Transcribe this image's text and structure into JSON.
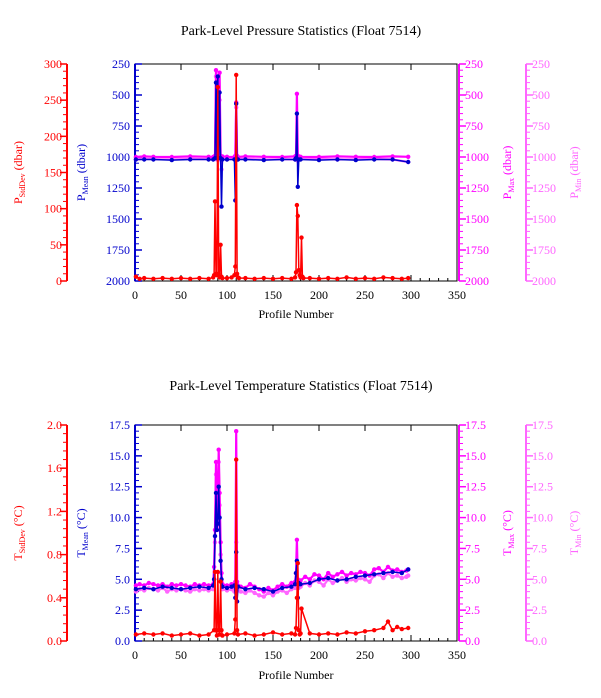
{
  "chart_data": [
    {
      "type": "line",
      "title": "Park-Level Pressure Statistics (Float 7514)",
      "xlabel": "Profile Number",
      "xlim": [
        0,
        350
      ],
      "x_ticks": [
        "0",
        "50",
        "100",
        "150",
        "200",
        "250",
        "300",
        "350"
      ],
      "axes": [
        {
          "label": {
            "main": "P",
            "sub": "StdDev",
            "rest": " (dbar)"
          },
          "color": "#ff0000",
          "lim": [
            0,
            300
          ],
          "reversed": false,
          "ticks": [
            "0",
            "50",
            "100",
            "150",
            "200",
            "250",
            "300"
          ]
        },
        {
          "label": {
            "main": "P",
            "sub": "Mean",
            "rest": " (dbar)"
          },
          "color": "#0000cc",
          "lim": [
            250,
            2000
          ],
          "reversed": true,
          "ticks": [
            "250",
            "500",
            "750",
            "1000",
            "1250",
            "1500",
            "1750",
            "2000"
          ]
        },
        {
          "label": {
            "main": "P",
            "sub": "Max",
            "rest": " (dbar)"
          },
          "color": "#ff00ff",
          "lim": [
            250,
            2000
          ],
          "reversed": true,
          "ticks": [
            "250",
            "500",
            "750",
            "1000",
            "1250",
            "1500",
            "1750",
            "2000"
          ]
        },
        {
          "label": {
            "main": "P",
            "sub": "Min",
            "rest": " (dbar)"
          },
          "color": "#ff66ff",
          "lim": [
            250,
            2000
          ],
          "reversed": true,
          "ticks": [
            "250",
            "500",
            "750",
            "1000",
            "1250",
            "1500",
            "1750",
            "2000"
          ]
        }
      ],
      "series": [
        {
          "axis": 0,
          "color": "#ff0000",
          "x": [
            1,
            5,
            10,
            20,
            30,
            40,
            50,
            60,
            70,
            80,
            85,
            86,
            87,
            88,
            89,
            90,
            91,
            92,
            93,
            94,
            95,
            100,
            105,
            108,
            109,
            110,
            111,
            112,
            113,
            120,
            130,
            140,
            150,
            160,
            170,
            174,
            175,
            176,
            177,
            178,
            179,
            180,
            181,
            182,
            183,
            190,
            200,
            210,
            220,
            230,
            240,
            250,
            260,
            270,
            280,
            290,
            297
          ],
          "y": [
            6,
            3,
            4,
            3,
            4,
            3,
            4,
            3,
            4,
            3,
            5,
            8,
            110,
            10,
            8,
            268,
            10,
            5,
            50,
            6,
            4,
            4,
            5,
            8,
            20,
            285,
            10,
            5,
            4,
            4,
            3,
            4,
            3,
            4,
            3,
            5,
            12,
            105,
            90,
            15,
            8,
            5,
            60,
            6,
            4,
            4,
            3,
            4,
            3,
            5,
            3,
            4,
            3,
            5,
            4,
            3,
            4
          ]
        },
        {
          "axis": 1,
          "color": "#0000cc",
          "x": [
            1,
            10,
            20,
            40,
            60,
            80,
            85,
            87,
            88,
            89,
            90,
            91,
            92,
            93,
            94,
            95,
            100,
            108,
            109,
            110,
            111,
            112,
            120,
            140,
            160,
            174,
            175,
            176,
            177,
            178,
            180,
            200,
            220,
            240,
            260,
            280,
            297
          ],
          "y": [
            1020,
            1020,
            1020,
            1025,
            1020,
            1020,
            1020,
            1010,
            400,
            1010,
            350,
            1010,
            480,
            1010,
            1400,
            1020,
            1020,
            1020,
            1350,
            570,
            1020,
            1020,
            1020,
            1025,
            1020,
            1020,
            1010,
            650,
            1240,
            1020,
            1020,
            1025,
            1020,
            1025,
            1020,
            1020,
            1040
          ]
        },
        {
          "axis": 2,
          "color": "#ff00ff",
          "x": [
            1,
            10,
            20,
            40,
            60,
            80,
            85,
            87,
            88,
            89,
            90,
            91,
            92,
            93,
            94,
            95,
            100,
            108,
            109,
            110,
            111,
            112,
            120,
            140,
            160,
            174,
            175,
            176,
            177,
            178,
            180,
            200,
            220,
            240,
            260,
            280,
            297
          ],
          "y": [
            1000,
            995,
            998,
            1000,
            995,
            998,
            1000,
            990,
            300,
            990,
            370,
            990,
            320,
            990,
            1000,
            995,
            998,
            1000,
            990,
            560,
            990,
            1000,
            995,
            998,
            1000,
            995,
            990,
            490,
            990,
            995,
            998,
            1000,
            995,
            998,
            1000,
            995,
            998
          ]
        },
        {
          "axis": 3,
          "color": "#ff66ff",
          "x": [
            1,
            10,
            20,
            40,
            60,
            80,
            85,
            87,
            88,
            89,
            90,
            91,
            92,
            93,
            94,
            95,
            100,
            108,
            109,
            110,
            111,
            112,
            120,
            140,
            160,
            174,
            175,
            176,
            177,
            178,
            180,
            200,
            220,
            240,
            260,
            280,
            297
          ],
          "y": [
            1020,
            1015,
            1018,
            1020,
            1015,
            1018,
            1020,
            1015,
            350,
            1020,
            460,
            1020,
            540,
            1020,
            1100,
            1018,
            1020,
            1015,
            1020,
            600,
            1020,
            1018,
            1015,
            1020,
            1018,
            1020,
            1015,
            1000,
            1030,
            1020,
            1018,
            1015,
            1020,
            1018,
            1015,
            1020,
            1040
          ]
        }
      ]
    },
    {
      "type": "line",
      "title": "Park-Level Temperature Statistics (Float 7514)",
      "xlabel": "Profile Number",
      "xlim": [
        0,
        350
      ],
      "x_ticks": [
        "0",
        "50",
        "100",
        "150",
        "200",
        "250",
        "300",
        "350"
      ],
      "axes": [
        {
          "label": {
            "main": "T",
            "sub": "StdDev",
            "rest": " (°C)"
          },
          "color": "#ff0000",
          "lim": [
            0,
            2
          ],
          "reversed": false,
          "ticks": [
            "0.0",
            "0.4",
            "0.8",
            "1.2",
            "1.6",
            "2.0"
          ]
        },
        {
          "label": {
            "main": "T",
            "sub": "Mean",
            "rest": " (°C)"
          },
          "color": "#0000cc",
          "lim": [
            0,
            17.5
          ],
          "reversed": false,
          "ticks": [
            "0.0",
            "2.5",
            "5.0",
            "7.5",
            "10.0",
            "12.5",
            "15.0",
            "17.5"
          ]
        },
        {
          "label": {
            "main": "T",
            "sub": "Max",
            "rest": " (°C)"
          },
          "color": "#ff00ff",
          "lim": [
            0,
            17.5
          ],
          "reversed": false,
          "ticks": [
            "0.0",
            "2.5",
            "5.0",
            "7.5",
            "10.0",
            "12.5",
            "15.0",
            "17.5"
          ]
        },
        {
          "label": {
            "main": "T",
            "sub": "Min",
            "rest": " (°C)"
          },
          "color": "#ff66ff",
          "lim": [
            0,
            17.5
          ],
          "reversed": false,
          "ticks": [
            "0.0",
            "2.5",
            "5.0",
            "7.5",
            "10.0",
            "12.5",
            "15.0",
            "17.5"
          ]
        }
      ],
      "series": [
        {
          "axis": 0,
          "color": "#ff0000",
          "x": [
            1,
            10,
            20,
            30,
            40,
            50,
            60,
            70,
            80,
            86,
            87,
            88,
            89,
            90,
            91,
            92,
            93,
            94,
            95,
            100,
            108,
            109,
            110,
            111,
            112,
            120,
            130,
            140,
            150,
            160,
            170,
            174,
            175,
            176,
            177,
            178,
            179,
            180,
            181,
            190,
            200,
            210,
            220,
            230,
            240,
            250,
            260,
            270,
            275,
            280,
            285,
            290,
            297
          ],
          "y": [
            0.06,
            0.07,
            0.06,
            0.07,
            0.05,
            0.06,
            0.07,
            0.05,
            0.06,
            0.1,
            0.64,
            0.1,
            0.05,
            0.64,
            0.1,
            0.06,
            0.55,
            0.1,
            0.05,
            0.06,
            0.07,
            0.2,
            1.68,
            0.1,
            0.06,
            0.07,
            0.05,
            0.06,
            0.08,
            0.06,
            0.07,
            0.06,
            0.12,
            0.4,
            0.72,
            0.1,
            0.06,
            0.07,
            0.3,
            0.07,
            0.06,
            0.07,
            0.06,
            0.08,
            0.07,
            0.09,
            0.1,
            0.12,
            0.18,
            0.1,
            0.13,
            0.11,
            0.12
          ]
        },
        {
          "axis": 1,
          "color": "#0000cc",
          "x": [
            1,
            10,
            20,
            30,
            40,
            50,
            60,
            70,
            80,
            85,
            86,
            87,
            88,
            89,
            90,
            91,
            92,
            93,
            94,
            95,
            100,
            105,
            108,
            109,
            110,
            111,
            112,
            120,
            130,
            140,
            150,
            160,
            170,
            174,
            175,
            176,
            177,
            178,
            180,
            190,
            200,
            210,
            220,
            230,
            240,
            250,
            260,
            270,
            280,
            290,
            297
          ],
          "y": [
            4.2,
            4.3,
            4.2,
            4.4,
            4.3,
            4.2,
            4.3,
            4.4,
            4.3,
            4.5,
            5.0,
            8.5,
            12.0,
            9.0,
            9.5,
            12.5,
            10.0,
            6.5,
            5.0,
            4.4,
            4.3,
            4.4,
            4.5,
            3.5,
            7.2,
            3.2,
            4.4,
            4.2,
            4.3,
            4.2,
            4.0,
            4.3,
            4.4,
            4.6,
            5.5,
            6.5,
            3.5,
            4.7,
            4.6,
            4.7,
            5.0,
            5.1,
            4.9,
            5.0,
            5.2,
            5.3,
            5.4,
            5.5,
            5.6,
            5.5,
            5.8
          ]
        },
        {
          "axis": 2,
          "color": "#ff00ff",
          "x": [
            1,
            5,
            10,
            15,
            20,
            25,
            30,
            35,
            40,
            45,
            50,
            55,
            60,
            65,
            70,
            75,
            80,
            85,
            86,
            87,
            88,
            89,
            90,
            91,
            92,
            93,
            94,
            95,
            100,
            105,
            108,
            109,
            110,
            111,
            112,
            115,
            120,
            125,
            130,
            135,
            140,
            145,
            150,
            155,
            160,
            165,
            170,
            174,
            175,
            176,
            177,
            178,
            180,
            185,
            190,
            195,
            200,
            205,
            210,
            215,
            220,
            225,
            230,
            235,
            240,
            245,
            250,
            255,
            260,
            265,
            270,
            275,
            280,
            285,
            290,
            295,
            297
          ],
          "y": [
            4.5,
            4.6,
            4.5,
            4.7,
            4.6,
            4.5,
            4.6,
            4.4,
            4.6,
            4.5,
            4.6,
            4.5,
            4.4,
            4.6,
            4.5,
            4.6,
            4.5,
            4.6,
            6.0,
            9.0,
            14.5,
            11.0,
            10.0,
            15.5,
            12.0,
            8.0,
            5.5,
            4.6,
            4.5,
            4.6,
            4.5,
            4.8,
            17.0,
            4.8,
            4.5,
            4.4,
            4.3,
            4.6,
            4.4,
            4.2,
            4.0,
            4.3,
            4.1,
            4.4,
            4.6,
            4.4,
            4.7,
            4.8,
            5.5,
            8.2,
            5.0,
            4.8,
            4.9,
            5.2,
            5.0,
            5.4,
            5.3,
            5.0,
            5.5,
            5.2,
            5.4,
            5.6,
            5.3,
            5.5,
            5.4,
            5.6,
            5.5,
            5.3,
            5.8,
            5.9,
            5.6,
            6.0,
            5.7,
            5.8,
            5.6,
            5.7,
            5.8
          ]
        },
        {
          "axis": 3,
          "color": "#ff66ff",
          "x": [
            1,
            5,
            10,
            15,
            20,
            25,
            30,
            35,
            40,
            45,
            50,
            55,
            60,
            65,
            70,
            75,
            80,
            85,
            86,
            87,
            88,
            89,
            90,
            91,
            92,
            93,
            94,
            95,
            100,
            105,
            108,
            109,
            110,
            111,
            112,
            115,
            120,
            125,
            130,
            135,
            140,
            145,
            150,
            155,
            160,
            165,
            170,
            174,
            175,
            176,
            177,
            178,
            180,
            185,
            190,
            195,
            200,
            205,
            210,
            215,
            220,
            225,
            230,
            235,
            240,
            245,
            250,
            255,
            260,
            265,
            270,
            275,
            280,
            285,
            290,
            295,
            297
          ],
          "y": [
            4.0,
            4.2,
            4.1,
            4.3,
            4.2,
            4.1,
            4.3,
            4.0,
            4.2,
            4.1,
            4.2,
            4.1,
            4.0,
            4.2,
            4.1,
            4.2,
            4.1,
            4.2,
            5.0,
            8.0,
            13.5,
            9.5,
            9.0,
            14.5,
            11.0,
            7.0,
            4.8,
            4.2,
            4.1,
            4.2,
            4.0,
            4.3,
            8.0,
            4.2,
            4.1,
            4.0,
            3.9,
            4.1,
            3.9,
            3.7,
            3.6,
            3.9,
            3.7,
            4.0,
            4.1,
            3.9,
            4.2,
            4.3,
            4.8,
            6.5,
            4.5,
            4.3,
            4.4,
            4.7,
            4.5,
            4.9,
            4.8,
            4.5,
            5.0,
            4.7,
            4.9,
            5.1,
            4.8,
            5.0,
            4.9,
            5.1,
            5.0,
            4.8,
            5.3,
            5.4,
            5.1,
            5.5,
            5.2,
            5.3,
            5.1,
            5.2,
            5.3
          ]
        }
      ]
    }
  ]
}
